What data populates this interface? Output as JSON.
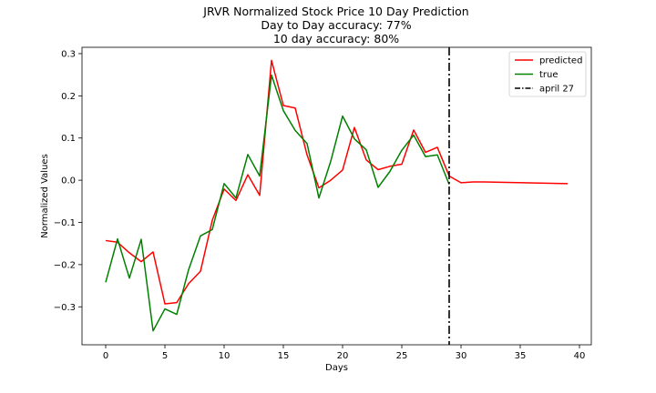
{
  "chart_data": {
    "type": "line",
    "title_lines": [
      "JRVR Normalized Stock Price 10 Day Prediction",
      "Day to Day accuracy: 77%",
      "10 day accuracy: 80%"
    ],
    "xlabel": "Days",
    "ylabel": "Normalized Values",
    "xlim": [
      -2,
      41
    ],
    "ylim": [
      -0.39,
      0.315
    ],
    "xticks": [
      0,
      5,
      10,
      15,
      20,
      25,
      30,
      35,
      40
    ],
    "yticks": [
      -0.3,
      -0.2,
      -0.1,
      0.0,
      0.1,
      0.2,
      0.3
    ],
    "xtick_labels": [
      "0",
      "5",
      "10",
      "15",
      "20",
      "25",
      "30",
      "35",
      "40"
    ],
    "ytick_labels": [
      "−0.3",
      "−0.2",
      "−0.1",
      "0.0",
      "0.1",
      "0.2",
      "0.3"
    ],
    "series": [
      {
        "name": "predicted",
        "color": "#ff0000",
        "x": [
          0,
          1,
          2,
          3,
          4,
          5,
          6,
          7,
          8,
          9,
          10,
          11,
          12,
          13,
          14,
          15,
          16,
          17,
          18,
          19,
          20,
          21,
          22,
          23,
          24,
          25,
          26,
          27,
          28,
          29,
          30,
          31,
          32,
          39
        ],
        "y": [
          -0.143,
          -0.147,
          -0.172,
          -0.193,
          -0.17,
          -0.293,
          -0.29,
          -0.245,
          -0.216,
          -0.095,
          -0.021,
          -0.048,
          0.013,
          -0.036,
          0.284,
          0.177,
          0.171,
          0.06,
          -0.018,
          0.0,
          0.024,
          0.125,
          0.048,
          0.025,
          0.033,
          0.038,
          0.119,
          0.066,
          0.078,
          0.01,
          -0.006,
          -0.004,
          -0.004,
          -0.008
        ]
      },
      {
        "name": "true",
        "color": "#008000",
        "x": [
          0,
          1,
          2,
          3,
          4,
          5,
          6,
          7,
          8,
          9,
          10,
          11,
          12,
          13,
          14,
          15,
          16,
          17,
          18,
          19,
          20,
          21,
          22,
          23,
          24,
          25,
          26,
          27,
          28,
          29
        ],
        "y": [
          -0.242,
          -0.139,
          -0.232,
          -0.14,
          -0.357,
          -0.305,
          -0.318,
          -0.212,
          -0.132,
          -0.117,
          -0.008,
          -0.042,
          0.061,
          0.01,
          0.249,
          0.165,
          0.118,
          0.087,
          -0.042,
          0.045,
          0.152,
          0.098,
          0.072,
          -0.017,
          0.021,
          0.071,
          0.107,
          0.056,
          0.06,
          -0.01
        ]
      }
    ],
    "vline": {
      "x": 29,
      "name": "april 27",
      "color": "#000000",
      "style": "dash-dot"
    },
    "grid": false,
    "legend_position": "top-right"
  }
}
